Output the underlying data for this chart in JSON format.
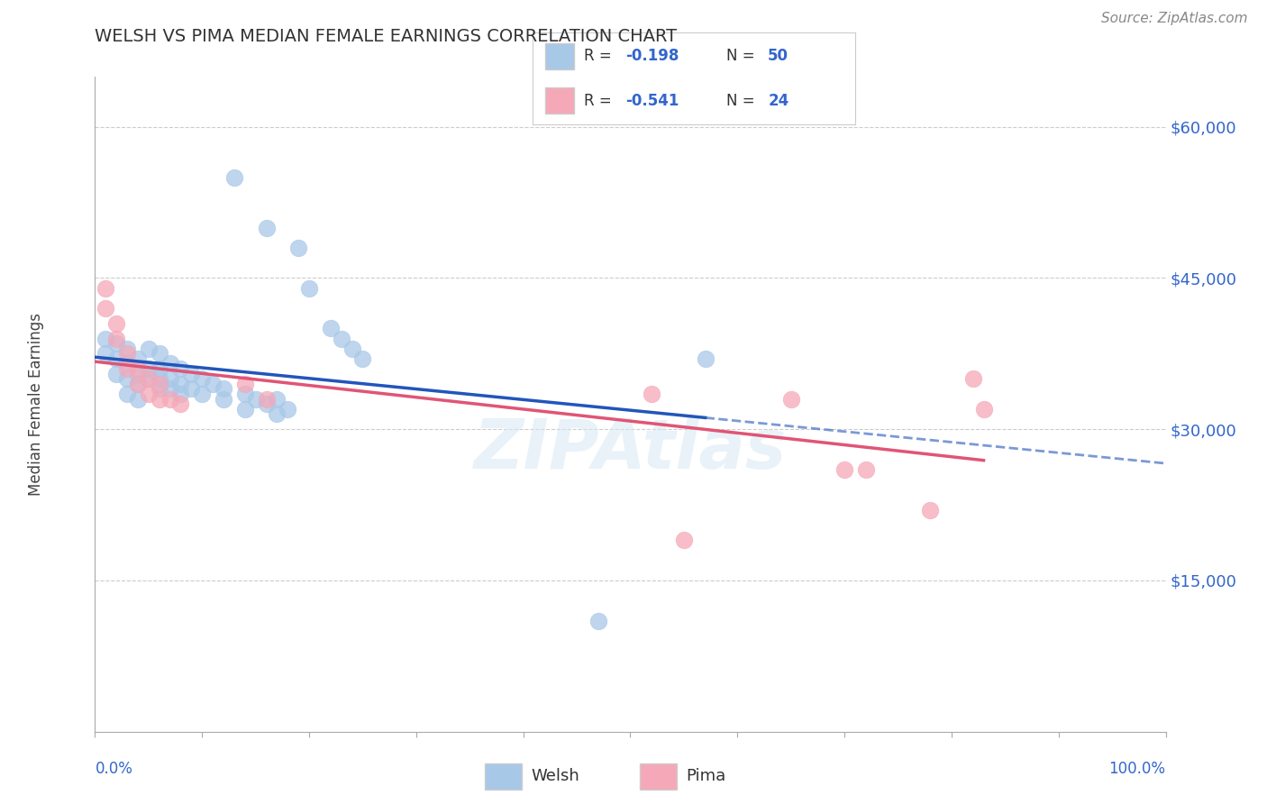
{
  "title": "WELSH VS PIMA MEDIAN FEMALE EARNINGS CORRELATION CHART",
  "source": "Source: ZipAtlas.com",
  "ylabel": "Median Female Earnings",
  "yticks": [
    0,
    15000,
    30000,
    45000,
    60000
  ],
  "ytick_labels": [
    "",
    "$15,000",
    "$30,000",
    "$45,000",
    "$60,000"
  ],
  "xlim": [
    0,
    1.0
  ],
  "ylim": [
    0,
    65000
  ],
  "welsh_R": -0.198,
  "welsh_N": 50,
  "pima_R": -0.541,
  "pima_N": 24,
  "welsh_color": "#a8c8e8",
  "pima_color": "#f5a8b8",
  "welsh_line_color": "#2255bb",
  "pima_line_color": "#e05575",
  "grid_color": "#cccccc",
  "background_color": "#ffffff",
  "welsh_points": [
    [
      0.01,
      39000
    ],
    [
      0.01,
      37500
    ],
    [
      0.02,
      38500
    ],
    [
      0.02,
      37000
    ],
    [
      0.02,
      35500
    ],
    [
      0.03,
      38000
    ],
    [
      0.03,
      36500
    ],
    [
      0.03,
      35000
    ],
    [
      0.03,
      33500
    ],
    [
      0.04,
      37000
    ],
    [
      0.04,
      35500
    ],
    [
      0.04,
      34500
    ],
    [
      0.04,
      33000
    ],
    [
      0.05,
      38000
    ],
    [
      0.05,
      36000
    ],
    [
      0.05,
      35000
    ],
    [
      0.06,
      37500
    ],
    [
      0.06,
      36000
    ],
    [
      0.06,
      35000
    ],
    [
      0.06,
      34000
    ],
    [
      0.07,
      36500
    ],
    [
      0.07,
      35000
    ],
    [
      0.07,
      34000
    ],
    [
      0.08,
      36000
    ],
    [
      0.08,
      34500
    ],
    [
      0.08,
      33500
    ],
    [
      0.09,
      35500
    ],
    [
      0.09,
      34000
    ],
    [
      0.1,
      35000
    ],
    [
      0.1,
      33500
    ],
    [
      0.11,
      34500
    ],
    [
      0.12,
      34000
    ],
    [
      0.12,
      33000
    ],
    [
      0.14,
      33500
    ],
    [
      0.14,
      32000
    ],
    [
      0.15,
      33000
    ],
    [
      0.16,
      32500
    ],
    [
      0.17,
      33000
    ],
    [
      0.17,
      31500
    ],
    [
      0.18,
      32000
    ],
    [
      0.13,
      55000
    ],
    [
      0.16,
      50000
    ],
    [
      0.19,
      48000
    ],
    [
      0.2,
      44000
    ],
    [
      0.22,
      40000
    ],
    [
      0.23,
      39000
    ],
    [
      0.24,
      38000
    ],
    [
      0.25,
      37000
    ],
    [
      0.47,
      11000
    ],
    [
      0.57,
      37000
    ]
  ],
  "pima_points": [
    [
      0.01,
      44000
    ],
    [
      0.01,
      42000
    ],
    [
      0.02,
      40500
    ],
    [
      0.02,
      39000
    ],
    [
      0.03,
      37500
    ],
    [
      0.03,
      36000
    ],
    [
      0.04,
      36000
    ],
    [
      0.04,
      34500
    ],
    [
      0.05,
      35000
    ],
    [
      0.05,
      33500
    ],
    [
      0.06,
      34500
    ],
    [
      0.06,
      33000
    ],
    [
      0.07,
      33000
    ],
    [
      0.08,
      32500
    ],
    [
      0.14,
      34500
    ],
    [
      0.16,
      33000
    ],
    [
      0.52,
      33500
    ],
    [
      0.65,
      33000
    ],
    [
      0.7,
      26000
    ],
    [
      0.72,
      26000
    ],
    [
      0.78,
      22000
    ],
    [
      0.82,
      35000
    ],
    [
      0.83,
      32000
    ],
    [
      0.55,
      19000
    ]
  ]
}
